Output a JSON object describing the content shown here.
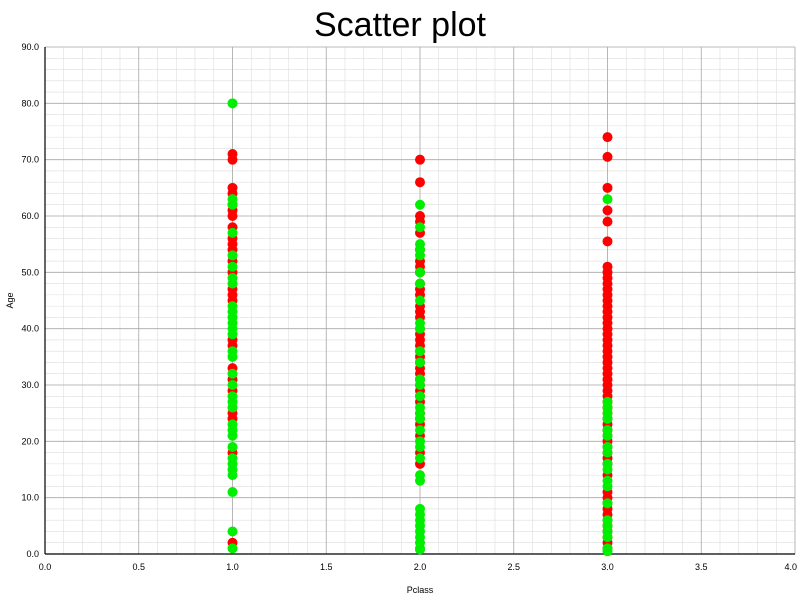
{
  "colors": {
    "survived": "#00ee00",
    "died": "#ff0000",
    "grid_major": "#aaaaaa",
    "grid_minor": "#dddddd",
    "axis": "#000000"
  },
  "chart_data": {
    "type": "scatter",
    "title": "Scatter plot",
    "xlabel": "Pclass",
    "ylabel": "Age",
    "xlim": [
      0.0,
      4.0
    ],
    "ylim": [
      0.0,
      90.0
    ],
    "x_ticks": [
      "0.0",
      "0.5",
      "1.0",
      "1.5",
      "2.0",
      "2.5",
      "3.0",
      "3.5",
      "4.0"
    ],
    "y_ticks": [
      "0.0",
      "10.0",
      "20.0",
      "30.0",
      "40.0",
      "50.0",
      "60.0",
      "70.0",
      "80.0",
      "90.0"
    ],
    "grid": true,
    "legend": "none",
    "series": [
      {
        "color": "#ff0000",
        "points": [
          [
            1,
            2
          ],
          [
            1,
            18
          ],
          [
            1,
            24
          ],
          [
            1,
            25
          ],
          [
            1,
            29
          ],
          [
            1,
            31
          ],
          [
            1,
            33
          ],
          [
            1,
            37
          ],
          [
            1,
            38
          ],
          [
            1,
            45
          ],
          [
            1,
            46
          ],
          [
            1,
            47
          ],
          [
            1,
            50
          ],
          [
            1,
            52
          ],
          [
            1,
            54
          ],
          [
            1,
            55
          ],
          [
            1,
            56
          ],
          [
            1,
            58
          ],
          [
            1,
            60
          ],
          [
            1,
            61
          ],
          [
            1,
            62
          ],
          [
            1,
            64
          ],
          [
            1,
            65
          ],
          [
            1,
            70
          ],
          [
            1,
            71
          ],
          [
            2,
            16
          ],
          [
            2,
            18
          ],
          [
            2,
            21
          ],
          [
            2,
            23
          ],
          [
            2,
            24
          ],
          [
            2,
            25
          ],
          [
            2,
            27
          ],
          [
            2,
            28
          ],
          [
            2,
            29
          ],
          [
            2,
            30
          ],
          [
            2,
            31
          ],
          [
            2,
            32
          ],
          [
            2,
            33
          ],
          [
            2,
            34
          ],
          [
            2,
            35
          ],
          [
            2,
            36
          ],
          [
            2,
            37
          ],
          [
            2,
            38
          ],
          [
            2,
            39
          ],
          [
            2,
            40
          ],
          [
            2,
            42
          ],
          [
            2,
            43
          ],
          [
            2,
            44
          ],
          [
            2,
            46
          ],
          [
            2,
            47
          ],
          [
            2,
            48
          ],
          [
            2,
            50
          ],
          [
            2,
            51
          ],
          [
            2,
            52
          ],
          [
            2,
            54
          ],
          [
            2,
            57
          ],
          [
            2,
            59
          ],
          [
            2,
            60
          ],
          [
            2,
            66
          ],
          [
            2,
            70
          ],
          [
            3,
            1
          ],
          [
            3,
            2
          ],
          [
            3,
            3
          ],
          [
            3,
            4
          ],
          [
            3,
            5
          ],
          [
            3,
            6
          ],
          [
            3,
            7
          ],
          [
            3,
            8
          ],
          [
            3,
            9
          ],
          [
            3,
            10
          ],
          [
            3,
            11
          ],
          [
            3,
            14
          ],
          [
            3,
            16
          ],
          [
            3,
            17
          ],
          [
            3,
            18
          ],
          [
            3,
            19
          ],
          [
            3,
            20
          ],
          [
            3,
            21
          ],
          [
            3,
            22
          ],
          [
            3,
            23
          ],
          [
            3,
            24
          ],
          [
            3,
            25
          ],
          [
            3,
            26
          ],
          [
            3,
            27
          ],
          [
            3,
            28
          ],
          [
            3,
            29
          ],
          [
            3,
            30
          ],
          [
            3,
            31
          ],
          [
            3,
            32
          ],
          [
            3,
            33
          ],
          [
            3,
            34
          ],
          [
            3,
            35
          ],
          [
            3,
            36
          ],
          [
            3,
            37
          ],
          [
            3,
            38
          ],
          [
            3,
            39
          ],
          [
            3,
            40
          ],
          [
            3,
            41
          ],
          [
            3,
            42
          ],
          [
            3,
            43
          ],
          [
            3,
            44
          ],
          [
            3,
            45
          ],
          [
            3,
            46
          ],
          [
            3,
            47
          ],
          [
            3,
            48
          ],
          [
            3,
            49
          ],
          [
            3,
            50
          ],
          [
            3,
            51
          ],
          [
            3,
            55.5
          ],
          [
            3,
            59
          ],
          [
            3,
            61
          ],
          [
            3,
            65
          ],
          [
            3,
            70.5
          ],
          [
            3,
            74
          ]
        ]
      },
      {
        "color": "#00ee00",
        "points": [
          [
            1,
            1
          ],
          [
            1,
            4
          ],
          [
            1,
            11
          ],
          [
            1,
            14
          ],
          [
            1,
            15
          ],
          [
            1,
            16
          ],
          [
            1,
            17
          ],
          [
            1,
            19
          ],
          [
            1,
            21
          ],
          [
            1,
            22
          ],
          [
            1,
            23
          ],
          [
            1,
            26
          ],
          [
            1,
            27
          ],
          [
            1,
            28
          ],
          [
            1,
            30
          ],
          [
            1,
            32
          ],
          [
            1,
            35
          ],
          [
            1,
            36
          ],
          [
            1,
            39
          ],
          [
            1,
            40
          ],
          [
            1,
            41
          ],
          [
            1,
            42
          ],
          [
            1,
            43
          ],
          [
            1,
            44
          ],
          [
            1,
            48
          ],
          [
            1,
            49
          ],
          [
            1,
            51
          ],
          [
            1,
            53
          ],
          [
            1,
            57
          ],
          [
            1,
            62
          ],
          [
            1,
            63
          ],
          [
            1,
            80
          ],
          [
            2,
            0.8
          ],
          [
            2,
            1
          ],
          [
            2,
            2
          ],
          [
            2,
            3
          ],
          [
            2,
            4
          ],
          [
            2,
            5
          ],
          [
            2,
            6
          ],
          [
            2,
            7
          ],
          [
            2,
            8
          ],
          [
            2,
            13
          ],
          [
            2,
            14
          ],
          [
            2,
            17
          ],
          [
            2,
            19
          ],
          [
            2,
            20
          ],
          [
            2,
            22
          ],
          [
            2,
            24
          ],
          [
            2,
            25
          ],
          [
            2,
            26
          ],
          [
            2,
            28
          ],
          [
            2,
            30
          ],
          [
            2,
            31
          ],
          [
            2,
            34
          ],
          [
            2,
            36
          ],
          [
            2,
            40
          ],
          [
            2,
            41
          ],
          [
            2,
            45
          ],
          [
            2,
            48
          ],
          [
            2,
            50
          ],
          [
            2,
            53
          ],
          [
            2,
            54
          ],
          [
            2,
            55
          ],
          [
            2,
            58
          ],
          [
            2,
            62
          ],
          [
            3,
            0.5
          ],
          [
            3,
            1
          ],
          [
            3,
            3
          ],
          [
            3,
            4
          ],
          [
            3,
            5
          ],
          [
            3,
            6
          ],
          [
            3,
            9
          ],
          [
            3,
            12
          ],
          [
            3,
            13
          ],
          [
            3,
            15
          ],
          [
            3,
            16
          ],
          [
            3,
            18
          ],
          [
            3,
            19
          ],
          [
            3,
            21
          ],
          [
            3,
            22
          ],
          [
            3,
            24
          ],
          [
            3,
            25
          ],
          [
            3,
            26
          ],
          [
            3,
            27
          ],
          [
            3,
            63
          ]
        ]
      }
    ]
  }
}
